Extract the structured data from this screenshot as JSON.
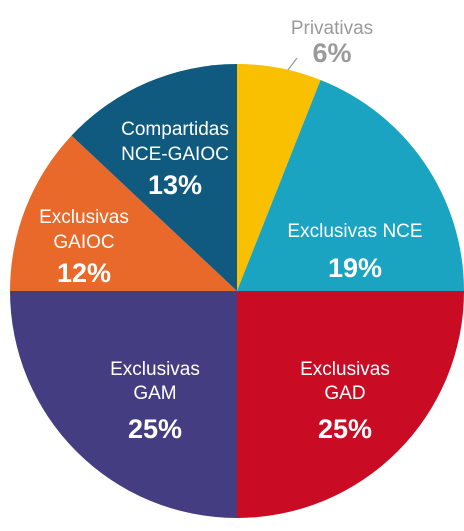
{
  "chart_data": {
    "type": "pie",
    "categories": [
      [
        "Privativas"
      ],
      [
        "Exclusivas NCE"
      ],
      [
        "Exclusivas",
        "GAD"
      ],
      [
        "Exclusivas",
        "GAM"
      ],
      [
        "Exclusivas",
        "GAIOC"
      ],
      [
        "Compartidas",
        "NCE-GAIOC"
      ]
    ],
    "values": [
      6,
      19,
      25,
      25,
      12,
      13
    ],
    "value_labels": [
      "6%",
      "19%",
      "25%",
      "25%",
      "12%",
      "13%"
    ],
    "colors": [
      "#f8c000",
      "#1aa4c1",
      "#c90b24",
      "#443d82",
      "#e8692a",
      "#0f5a7e"
    ]
  }
}
